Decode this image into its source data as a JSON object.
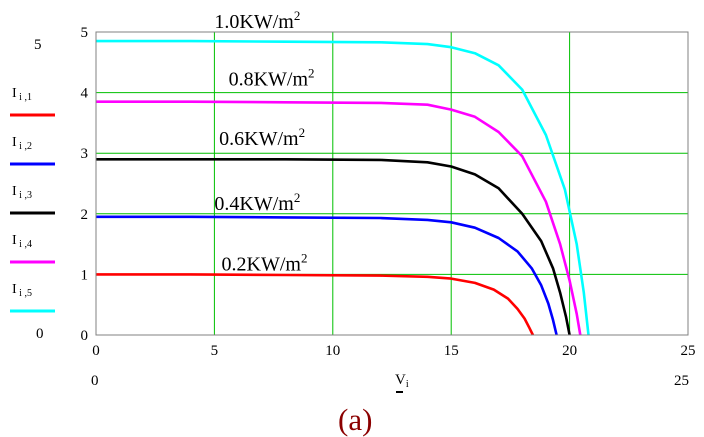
{
  "caption": "(a)",
  "chart_data": {
    "type": "line",
    "xlabel": "V",
    "xlabel_sub": "i",
    "xlim": [
      0,
      25
    ],
    "ylim": [
      0,
      5
    ],
    "x_ticks": [
      "0",
      "5",
      "10",
      "15",
      "20",
      "25"
    ],
    "y_ticks": [
      "0",
      "1",
      "2",
      "3",
      "4",
      "5"
    ],
    "outer_x_min_label": "0",
    "outer_x_max_label": "25",
    "outer_y_min_label": "0",
    "outer_y_max_label": "5",
    "grid": true,
    "grid_color": "#00c000",
    "legend_position": "left",
    "series": [
      {
        "name": "I",
        "name_sub": "i ,1",
        "color": "#ff0000",
        "annotation": "0.2KW/m",
        "annotation_sup": "2",
        "annotation_at": [
          5.3,
          1.0
        ],
        "x": [
          0,
          4,
          8,
          12,
          14,
          15,
          16,
          16.8,
          17.4,
          17.8,
          18.1,
          18.3,
          18.45
        ],
        "y": [
          1.0,
          1.0,
          0.99,
          0.98,
          0.96,
          0.93,
          0.86,
          0.75,
          0.6,
          0.43,
          0.27,
          0.12,
          0
        ]
      },
      {
        "name": "I",
        "name_sub": "i ,2",
        "color": "#0000ff",
        "annotation": "0.4KW/m",
        "annotation_sup": "2",
        "annotation_at": [
          5.0,
          2.0
        ],
        "x": [
          0,
          4,
          8,
          12,
          14,
          15,
          16,
          17,
          17.8,
          18.4,
          18.8,
          19.1,
          19.3,
          19.45
        ],
        "y": [
          1.95,
          1.95,
          1.94,
          1.93,
          1.9,
          1.86,
          1.77,
          1.6,
          1.38,
          1.1,
          0.82,
          0.52,
          0.25,
          0
        ]
      },
      {
        "name": "I",
        "name_sub": "i ,3",
        "color": "#000000",
        "annotation": "0.6KW/m",
        "annotation_sup": "2",
        "annotation_at": [
          5.2,
          3.07
        ],
        "x": [
          0,
          4,
          8,
          12,
          14,
          15,
          16,
          17,
          18,
          18.8,
          19.3,
          19.6,
          19.85,
          20.0
        ],
        "y": [
          2.9,
          2.9,
          2.9,
          2.89,
          2.85,
          2.78,
          2.65,
          2.42,
          2.0,
          1.55,
          1.1,
          0.7,
          0.3,
          0
        ]
      },
      {
        "name": "I",
        "name_sub": "i ,4",
        "color": "#ff00ff",
        "annotation": "0.8KW/m",
        "annotation_sup": "2",
        "annotation_at": [
          5.6,
          4.05
        ],
        "x": [
          0,
          4,
          8,
          12,
          14,
          15,
          16,
          17,
          18,
          19,
          19.6,
          20.0,
          20.3,
          20.45
        ],
        "y": [
          3.85,
          3.85,
          3.84,
          3.83,
          3.8,
          3.72,
          3.6,
          3.35,
          2.95,
          2.2,
          1.5,
          0.9,
          0.35,
          0
        ]
      },
      {
        "name": "I",
        "name_sub": "i ,5",
        "color": "#00ffff",
        "annotation": "1.0KW/m",
        "annotation_sup": "2",
        "annotation_at": [
          5.0,
          5.0
        ],
        "x": [
          0,
          4,
          8,
          12,
          14,
          15,
          16,
          17,
          18,
          19,
          19.8,
          20.3,
          20.6,
          20.8
        ],
        "y": [
          4.85,
          4.85,
          4.84,
          4.83,
          4.8,
          4.75,
          4.65,
          4.45,
          4.05,
          3.3,
          2.4,
          1.5,
          0.7,
          0
        ]
      }
    ]
  }
}
